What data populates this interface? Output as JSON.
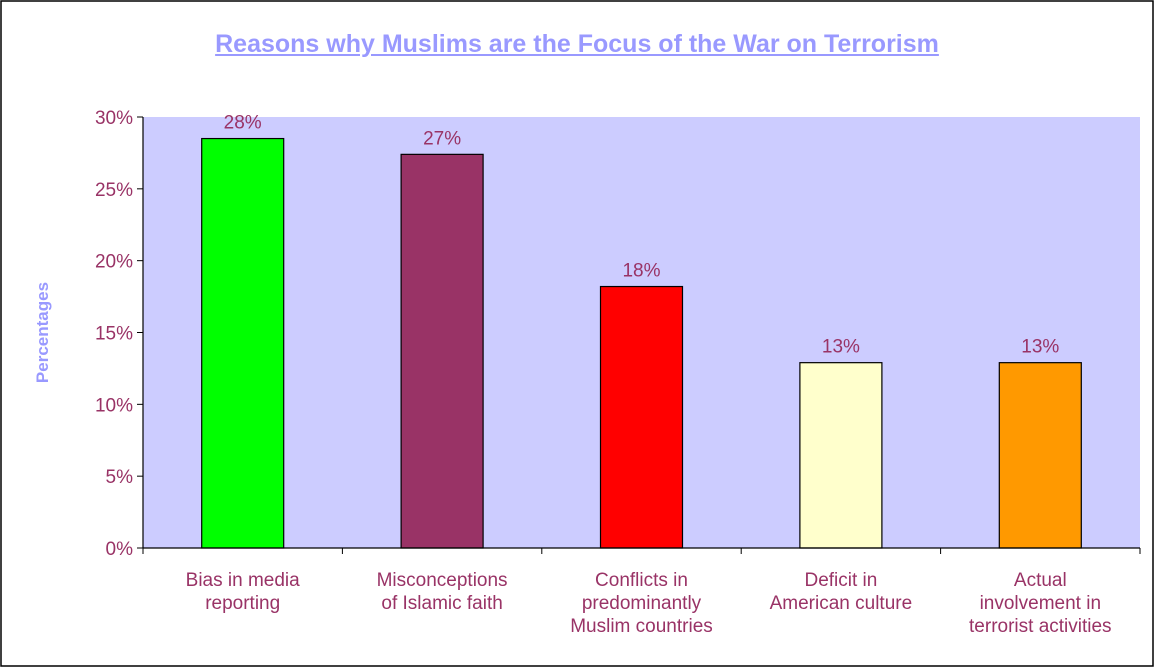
{
  "chart_data": {
    "type": "bar",
    "title": "Reasons why Muslims are the Focus of the War on Terrorism",
    "ylabel": "Percentages",
    "xlabel": "",
    "ylim": [
      0,
      30
    ],
    "yticks": [
      "0%",
      "5%",
      "10%",
      "15%",
      "20%",
      "25%",
      "30%"
    ],
    "categories": [
      "Bias in media reporting",
      "Misconceptions of Islamic faith",
      "Conflicts in predominantly Muslim countries",
      "Deficit in American culture",
      "Actual involvement in terrorist activities"
    ],
    "category_lines": [
      [
        "Bias in media",
        "reporting"
      ],
      [
        "Misconceptions",
        "of Islamic faith"
      ],
      [
        "Conflicts in",
        "predominantly",
        "Muslim countries"
      ],
      [
        "Deficit in",
        "American culture"
      ],
      [
        "Actual",
        "involvement in",
        "terrorist activities"
      ]
    ],
    "values": [
      28.5,
      27.4,
      18.2,
      12.9,
      12.9
    ],
    "data_labels": [
      "28%",
      "27%",
      "18%",
      "13%",
      "13%"
    ],
    "bar_colors": [
      "#00ff00",
      "#993366",
      "#ff0000",
      "#ffffcc",
      "#ff9900"
    ],
    "plot_background": "#ccccff",
    "text_color": "#993366",
    "title_color": "#9999ff",
    "grid": false,
    "legend": "none"
  }
}
